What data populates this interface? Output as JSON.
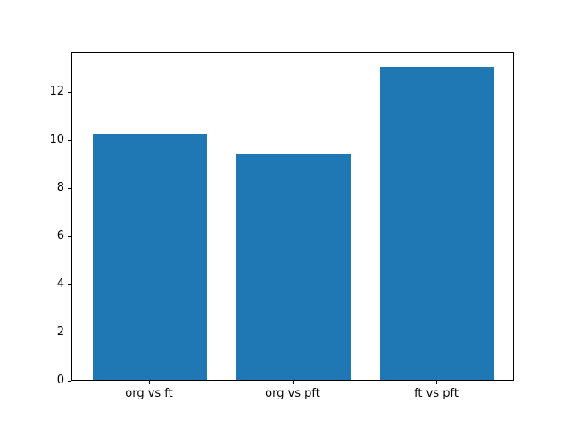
{
  "chart_data": {
    "type": "bar",
    "categories": [
      "org vs ft",
      "org vs pft",
      "ft vs pft"
    ],
    "values": [
      10.2,
      9.35,
      13.0
    ],
    "title": "",
    "xlabel": "",
    "ylabel": "",
    "ylim": [
      0,
      13.65
    ],
    "xlim": [
      -0.54,
      2.54
    ],
    "yticks": [
      0,
      2,
      4,
      6,
      8,
      10,
      12
    ],
    "bar_width": 0.8,
    "bar_color": "#1f77b4",
    "background": "#ffffff",
    "grid": false,
    "legend": null
  }
}
